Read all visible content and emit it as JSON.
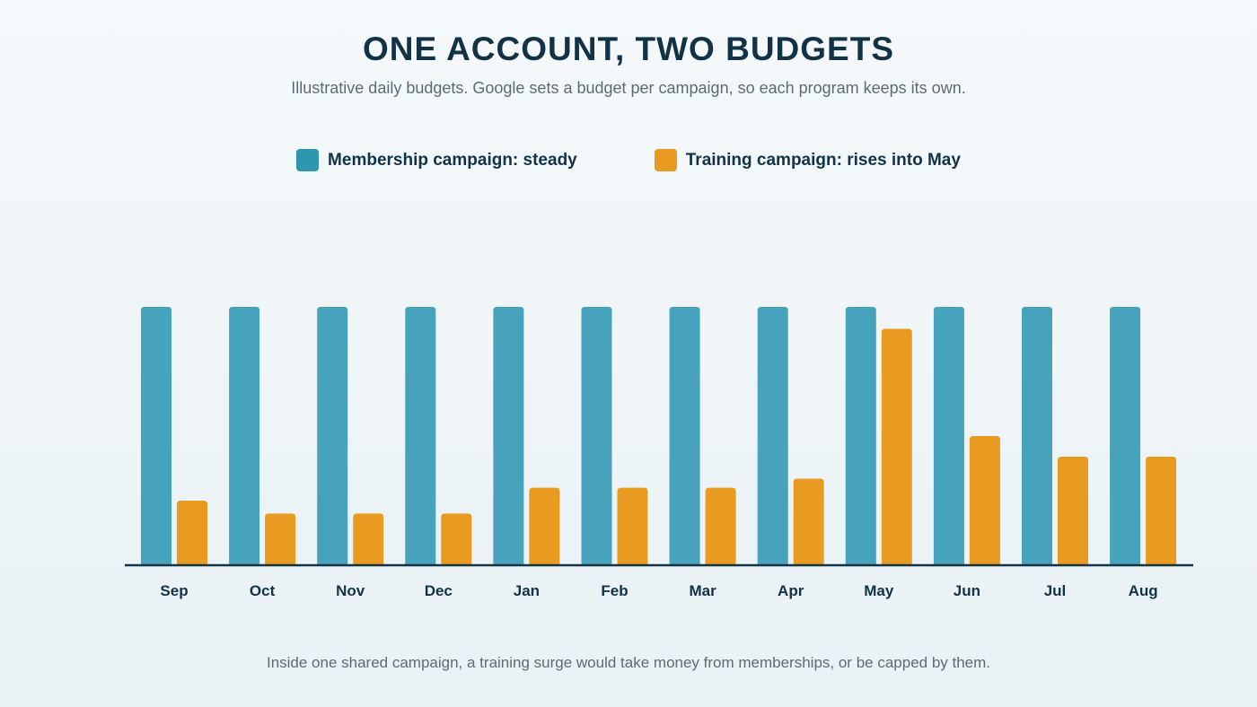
{
  "header": {
    "title": "ONE ACCOUNT, TWO BUDGETS",
    "subtitle": "Illustrative daily budgets. Google sets a budget per campaign, so each program keeps its own."
  },
  "footnote": "Inside one shared campaign, a training surge would take money from memberships, or be capped by them.",
  "colors": {
    "membership": "#47a3bb",
    "membership_swatch": "#2f96b0",
    "training": "#e99b21",
    "axis": "#123246",
    "label": "#123246"
  },
  "chart_data": {
    "type": "bar",
    "categories": [
      "Sep",
      "Oct",
      "Nov",
      "Dec",
      "Jan",
      "Feb",
      "Mar",
      "Apr",
      "May",
      "Jun",
      "Jul",
      "Aug"
    ],
    "series": [
      {
        "name": "Membership campaign: steady",
        "values": [
          100,
          100,
          100,
          100,
          100,
          100,
          100,
          100,
          100,
          100,
          100,
          100
        ]
      },
      {
        "name": "Training campaign: rises into May",
        "values": [
          25,
          20,
          20,
          20,
          30,
          30,
          30,
          33.5,
          91.5,
          50,
          42,
          42
        ]
      }
    ],
    "ylim": [
      0,
      100
    ],
    "grid": false,
    "y_axis_visible": false,
    "legend_placement": "top-center",
    "title": "",
    "xlabel": "",
    "ylabel": ""
  }
}
